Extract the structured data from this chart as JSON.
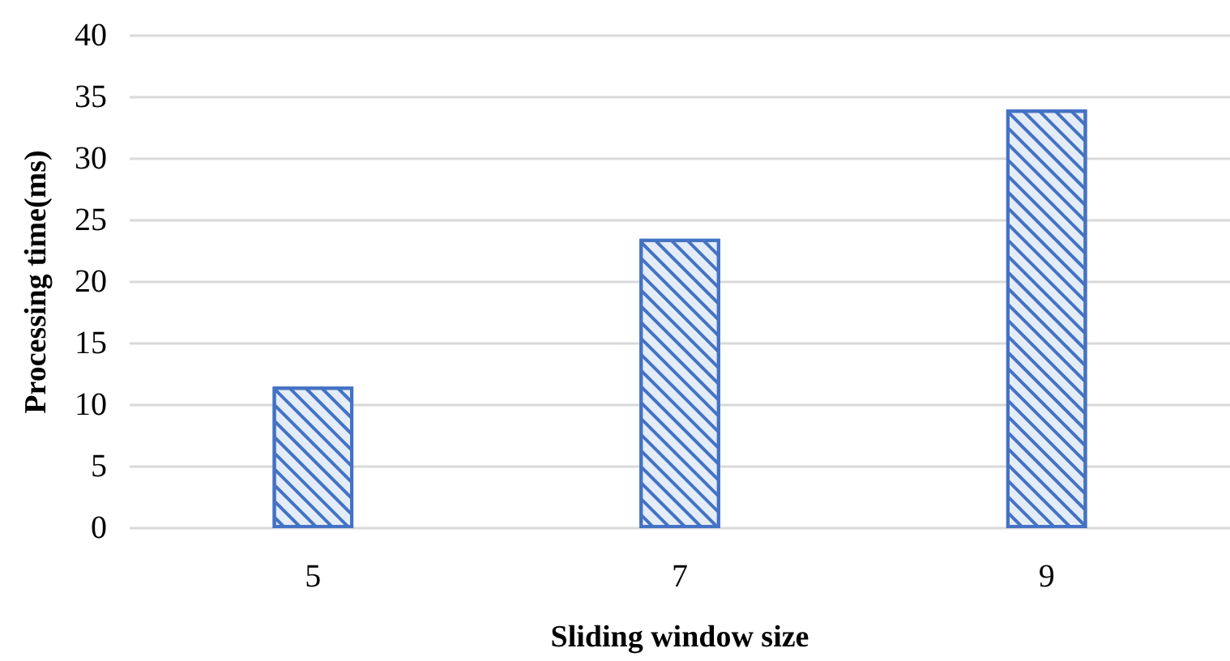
{
  "chart_data": {
    "type": "bar",
    "xlabel": "Sliding window size",
    "ylabel": "Processing time(ms)",
    "categories": [
      "5",
      "7",
      "9"
    ],
    "values": [
      11.5,
      23.5,
      34
    ],
    "color": "#4472c4",
    "ylim": [
      0,
      40
    ],
    "yticks": [
      0,
      5,
      10,
      15,
      20,
      25,
      30,
      35,
      40
    ],
    "grid": "y"
  }
}
